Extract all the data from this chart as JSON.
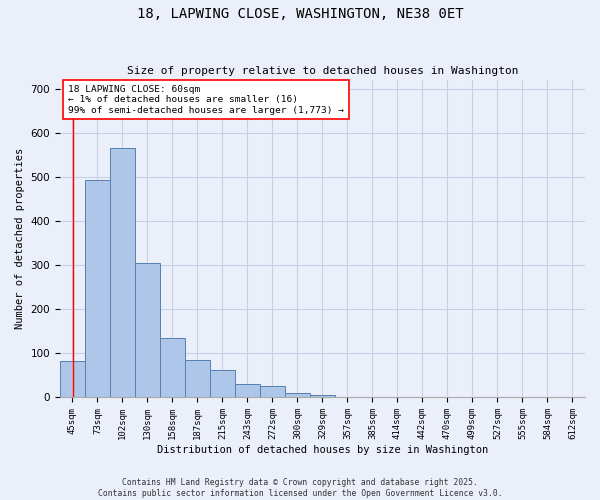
{
  "title": "18, LAPWING CLOSE, WASHINGTON, NE38 0ET",
  "subtitle": "Size of property relative to detached houses in Washington",
  "xlabel": "Distribution of detached houses by size in Washington",
  "ylabel": "Number of detached properties",
  "categories": [
    "45sqm",
    "73sqm",
    "102sqm",
    "130sqm",
    "158sqm",
    "187sqm",
    "215sqm",
    "243sqm",
    "272sqm",
    "300sqm",
    "329sqm",
    "357sqm",
    "385sqm",
    "414sqm",
    "442sqm",
    "470sqm",
    "499sqm",
    "527sqm",
    "555sqm",
    "584sqm",
    "612sqm"
  ],
  "values": [
    83,
    493,
    567,
    305,
    135,
    85,
    62,
    31,
    26,
    11,
    5,
    0,
    0,
    0,
    0,
    0,
    0,
    0,
    0,
    0,
    0
  ],
  "bar_color": "#aec6e8",
  "bar_edge_color": "#5580b0",
  "bg_color": "#eaeff9",
  "grid_color": "#c8d0e8",
  "annotation_box_text": "18 LAPWING CLOSE: 60sqm\n← 1% of detached houses are smaller (16)\n99% of semi-detached houses are larger (1,773) →",
  "ylim": [
    0,
    720
  ],
  "yticks": [
    0,
    100,
    200,
    300,
    400,
    500,
    600,
    700
  ],
  "red_line_x": 0.036,
  "footer_line1": "Contains HM Land Registry data © Crown copyright and database right 2025.",
  "footer_line2": "Contains public sector information licensed under the Open Government Licence v3.0."
}
